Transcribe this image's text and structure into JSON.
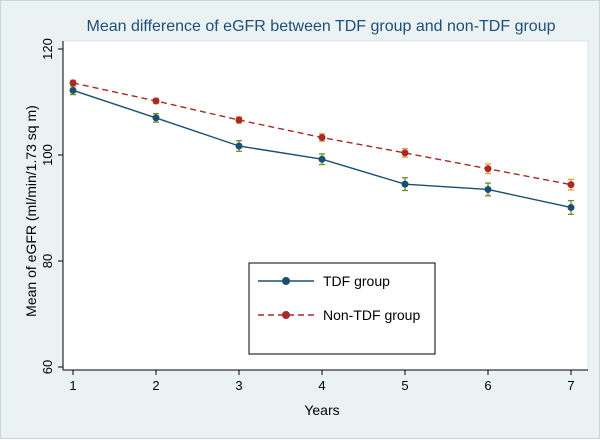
{
  "chart_data": {
    "type": "line",
    "title": "Mean difference of eGFR between TDF group and non-TDF group",
    "xlabel": "Years",
    "ylabel": "Mean of eGFR (ml/min/1.73 sq m)",
    "x": [
      1,
      2,
      3,
      4,
      5,
      6,
      7
    ],
    "xlim": [
      1,
      7
    ],
    "ylim": [
      60,
      120
    ],
    "yticks": [
      60,
      80,
      100,
      120
    ],
    "grid": false,
    "legend_position": "inside-bottom-center",
    "series": [
      {
        "name": "TDF group",
        "values": [
          112.2,
          107.0,
          101.7,
          99.2,
          94.5,
          93.5,
          90.1
        ],
        "err": [
          0.8,
          0.8,
          1.0,
          1.0,
          1.2,
          1.2,
          1.3
        ],
        "line_color": "#1b4f72",
        "marker_color": "#1b4f72",
        "errorbar_color": "#6b8e23",
        "dashed": false
      },
      {
        "name": "Non-TDF group",
        "values": [
          113.6,
          110.2,
          106.6,
          103.3,
          100.4,
          97.4,
          94.4
        ],
        "err": [
          0.5,
          0.5,
          0.6,
          0.7,
          0.8,
          0.9,
          1.0
        ],
        "line_color": "#a52a2a",
        "marker_color": "#a52a2a",
        "errorbar_color": "#f0a020",
        "dashed": true
      }
    ]
  }
}
